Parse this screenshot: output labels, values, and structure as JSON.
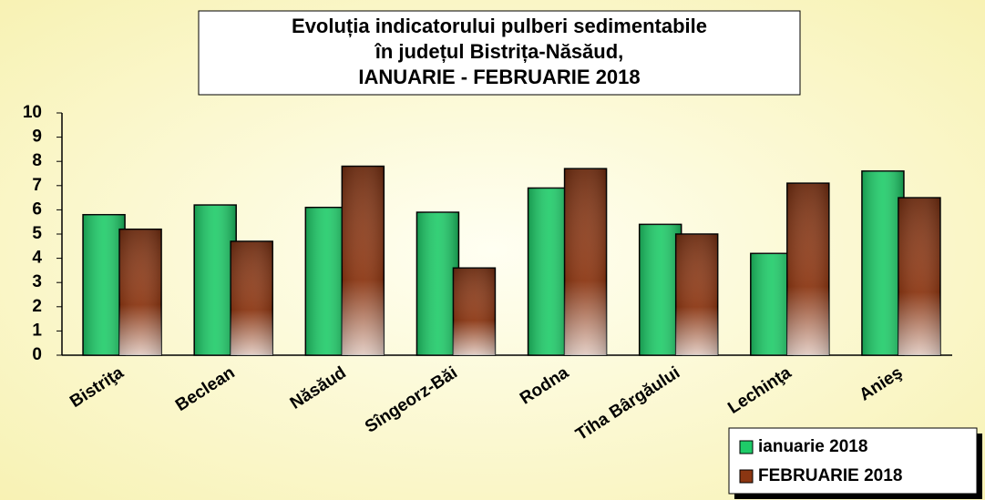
{
  "chart_data": {
    "type": "bar",
    "title": [
      "Evoluția indicatorului pulberi sedimentabile",
      "în județul Bistrița-Năsăud,",
      "IANUARIE - FEBRUARIE 2018"
    ],
    "categories": [
      "Bistriţa",
      "Beclean",
      "Năsăud",
      "Sîngeorz-Băi",
      "Rodna",
      "Tiha Bârgăului",
      "Lechinţa",
      "Anieş"
    ],
    "series": [
      {
        "name": "ianuarie 2018",
        "color": "#1ecb68",
        "values": [
          5.8,
          6.2,
          6.1,
          5.9,
          6.9,
          5.4,
          4.2,
          7.6
        ]
      },
      {
        "name": "FEBRUARIE 2018",
        "color": "#8b3612",
        "values": [
          5.2,
          4.7,
          7.8,
          3.6,
          7.7,
          5.0,
          7.1,
          6.5
        ]
      }
    ],
    "ylim": [
      0,
      10
    ],
    "yticks": [
      0,
      1,
      2,
      3,
      4,
      5,
      6,
      7,
      8,
      9,
      10
    ],
    "grid": false,
    "legend": "bottom-right"
  }
}
